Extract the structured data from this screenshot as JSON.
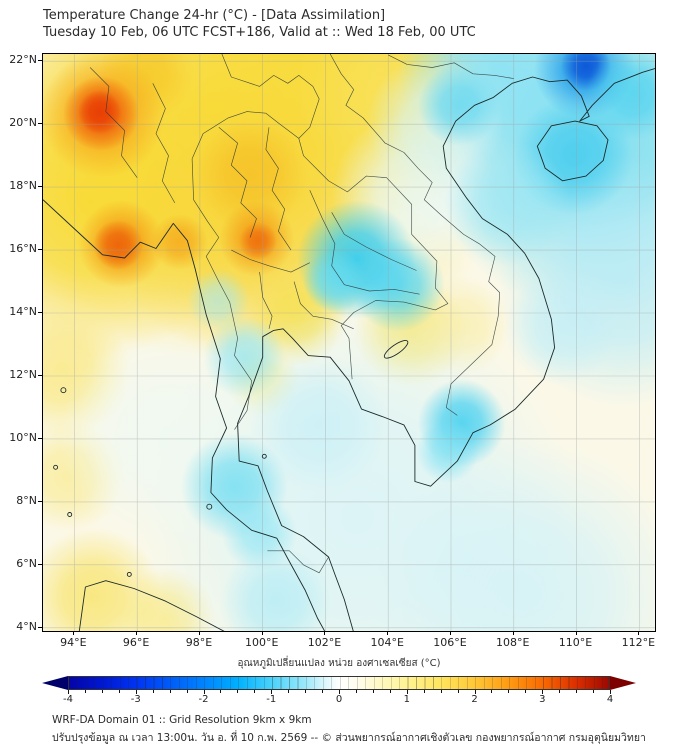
{
  "header": {
    "title": "Temperature Change 24-hr (°C) - [Data Assimilation]",
    "subtitle": "Tuesday 10 Feb, 06 UTC FCST+186, Valid at :: Wed 18 Feb, 00 UTC"
  },
  "map": {
    "lat_labels": [
      "22°N",
      "20°N",
      "18°N",
      "16°N",
      "14°N",
      "12°N",
      "10°N",
      "8°N",
      "6°N",
      "4°N"
    ],
    "lat_values": [
      22,
      20,
      18,
      16,
      14,
      12,
      10,
      8,
      6,
      4
    ],
    "lon_labels": [
      "94°E",
      "96°E",
      "98°E",
      "100°E",
      "102°E",
      "104°E",
      "106°E",
      "108°E",
      "110°E",
      "112°E"
    ],
    "lon_values": [
      94,
      96,
      98,
      100,
      102,
      104,
      106,
      108,
      110,
      112
    ],
    "field_blobs": [
      {
        "lon": 98.5,
        "lat": 20.5,
        "r": 8.0,
        "c": "#f8d92e",
        "a": 0.95
      },
      {
        "lon": 94.5,
        "lat": 17.5,
        "r": 5.0,
        "c": "#f8d92e",
        "a": 0.9
      },
      {
        "lon": 102.5,
        "lat": 21.5,
        "r": 5.0,
        "c": "#f8da38",
        "a": 0.9
      },
      {
        "lon": 99.5,
        "lat": 17.0,
        "r": 4.5,
        "c": "#f7d63a",
        "a": 0.85
      },
      {
        "lon": 104.0,
        "lat": 21.0,
        "r": 3.0,
        "c": "#f9e25c",
        "a": 0.7
      },
      {
        "lon": 93.6,
        "lat": 12.2,
        "r": 2.2,
        "c": "#f9e87e",
        "a": 0.8
      },
      {
        "lon": 93.8,
        "lat": 8.8,
        "r": 1.8,
        "c": "#f9ea8c",
        "a": 0.7
      },
      {
        "lon": 94.6,
        "lat": 5.0,
        "r": 2.2,
        "c": "#f8e468",
        "a": 0.8
      },
      {
        "lon": 96.9,
        "lat": 4.3,
        "r": 1.6,
        "c": "#f8e87c",
        "a": 0.7
      },
      {
        "lon": 101.1,
        "lat": 13.9,
        "r": 1.6,
        "c": "#f6e04e",
        "a": 0.85
      },
      {
        "lon": 100.0,
        "lat": 11.9,
        "r": 1.2,
        "c": "#f8e86e",
        "a": 0.6
      },
      {
        "lon": 104.7,
        "lat": 13.4,
        "r": 1.8,
        "c": "#f7e564",
        "a": 0.75
      },
      {
        "lon": 106.3,
        "lat": 13.6,
        "r": 1.6,
        "c": "#f8eca0",
        "a": 0.65
      },
      {
        "lon": 105.2,
        "lat": 15.8,
        "r": 1.6,
        "c": "#f9f0b4",
        "a": 0.5
      },
      {
        "lon": 110.5,
        "lat": 19.5,
        "r": 5.5,
        "c": "#7adef2",
        "a": 0.95
      },
      {
        "lon": 107.5,
        "lat": 21.8,
        "r": 3.2,
        "c": "#8ae2f4",
        "a": 0.9
      },
      {
        "lon": 111.5,
        "lat": 15.0,
        "r": 4.0,
        "c": "#b6ebf7",
        "a": 0.8
      },
      {
        "lon": 103.0,
        "lat": 7.5,
        "r": 7.0,
        "c": "#d9f4f8",
        "a": 0.9
      },
      {
        "lon": 108.5,
        "lat": 5.0,
        "r": 5.0,
        "c": "#d2f2f8",
        "a": 0.85
      },
      {
        "lon": 97.0,
        "lat": 10.0,
        "r": 3.5,
        "c": "#eef9f3",
        "a": 0.8
      },
      {
        "lon": 104.8,
        "lat": 17.8,
        "r": 2.6,
        "c": "#e8f8f6",
        "a": 0.8
      },
      {
        "lon": 105.5,
        "lat": 20.0,
        "r": 2.2,
        "c": "#d8f4f6",
        "a": 0.8
      },
      {
        "lon": 110.25,
        "lat": 21.75,
        "r": 1.6,
        "c": "#28a0ea",
        "a": 0.95
      },
      {
        "lon": 110.3,
        "lat": 21.85,
        "r": 0.8,
        "c": "#0c55d8",
        "a": 0.95
      },
      {
        "lon": 109.9,
        "lat": 19.0,
        "r": 1.9,
        "c": "#46ccee",
        "a": 0.85
      },
      {
        "lon": 106.25,
        "lat": 20.6,
        "r": 1.3,
        "c": "#5ad5f0",
        "a": 0.75
      },
      {
        "lon": 103.0,
        "lat": 15.7,
        "r": 1.9,
        "c": "#38cdf0",
        "a": 0.95
      },
      {
        "lon": 104.3,
        "lat": 14.9,
        "r": 1.5,
        "c": "#4ed4f0",
        "a": 0.85
      },
      {
        "lon": 102.3,
        "lat": 15.0,
        "r": 1.0,
        "c": "#66dcf2",
        "a": 0.8
      },
      {
        "lon": 99.4,
        "lat": 12.6,
        "r": 1.3,
        "c": "#8ce4f4",
        "a": 0.7
      },
      {
        "lon": 98.6,
        "lat": 14.4,
        "r": 1.0,
        "c": "#a2e9f6",
        "a": 0.6
      },
      {
        "lon": 99.1,
        "lat": 8.5,
        "r": 1.7,
        "c": "#6cdcf2",
        "a": 0.8
      },
      {
        "lon": 99.9,
        "lat": 7.0,
        "r": 1.2,
        "c": "#8ee5f4",
        "a": 0.7
      },
      {
        "lon": 106.35,
        "lat": 10.5,
        "r": 1.4,
        "c": "#40cff0",
        "a": 0.85
      },
      {
        "lon": 105.9,
        "lat": 9.6,
        "r": 1.0,
        "c": "#7ee1f3",
        "a": 0.7
      },
      {
        "lon": 101.8,
        "lat": 10.5,
        "r": 2.2,
        "c": "#c6eff8",
        "a": 0.7
      },
      {
        "lon": 100.4,
        "lat": 4.8,
        "r": 1.8,
        "c": "#aeebf6",
        "a": 0.7
      },
      {
        "lon": 107.8,
        "lat": 17.5,
        "r": 2.0,
        "c": "#9de7f5",
        "a": 0.75
      },
      {
        "lon": 109.5,
        "lat": 13.5,
        "r": 1.8,
        "c": "#c2eef7",
        "a": 0.7
      },
      {
        "lon": 111.8,
        "lat": 21.0,
        "r": 1.5,
        "c": "#50d2ef",
        "a": 0.8
      },
      {
        "lon": 96.3,
        "lat": 21.6,
        "r": 1.5,
        "c": "#f6c626",
        "a": 0.75
      },
      {
        "lon": 99.6,
        "lat": 18.4,
        "r": 1.8,
        "c": "#f6bc22",
        "a": 0.7
      },
      {
        "lon": 94.9,
        "lat": 20.3,
        "r": 2.0,
        "c": "#f6a81e",
        "a": 0.95
      },
      {
        "lon": 94.85,
        "lat": 20.35,
        "r": 1.2,
        "c": "#ee5a0a",
        "a": 0.95
      },
      {
        "lon": 94.8,
        "lat": 20.4,
        "r": 0.7,
        "c": "#e83c04",
        "a": 0.9
      },
      {
        "lon": 95.5,
        "lat": 16.2,
        "r": 1.4,
        "c": "#f49a14",
        "a": 0.9
      },
      {
        "lon": 95.4,
        "lat": 16.15,
        "r": 0.8,
        "c": "#ec5c08",
        "a": 0.85
      },
      {
        "lon": 97.35,
        "lat": 16.25,
        "r": 0.9,
        "c": "#f5a81c",
        "a": 0.8
      },
      {
        "lon": 99.8,
        "lat": 16.35,
        "r": 1.2,
        "c": "#f4a01a",
        "a": 0.9
      },
      {
        "lon": 99.85,
        "lat": 16.3,
        "r": 0.6,
        "c": "#ee6a0c",
        "a": 0.85
      }
    ]
  },
  "colorbar": {
    "label": "อุณหภูมิเปลี่ยนแปลง หน่วย องศาเซลเซียส (°C)",
    "ticks": [
      "-4",
      "-3",
      "-2",
      "-1",
      "0",
      "1",
      "2",
      "3",
      "4"
    ],
    "tick_values": [
      -4,
      -3,
      -2,
      -1,
      0,
      1,
      2,
      3,
      4
    ],
    "minor_step": 0.25,
    "range": [
      -4,
      4
    ],
    "left_arrow_color": "#00006a",
    "right_arrow_color": "#7c0000",
    "stops": [
      {
        "p": 0,
        "c": "#0404a8"
      },
      {
        "p": 6.25,
        "c": "#0018d2"
      },
      {
        "p": 12.5,
        "c": "#0034f2"
      },
      {
        "p": 18.75,
        "c": "#005cf8"
      },
      {
        "p": 25,
        "c": "#0084ff"
      },
      {
        "p": 31.25,
        "c": "#00b0ff"
      },
      {
        "p": 37.5,
        "c": "#4ad2fa"
      },
      {
        "p": 43.75,
        "c": "#9ce9fa"
      },
      {
        "p": 47,
        "c": "#d6f6fc"
      },
      {
        "p": 50,
        "c": "#ffffff"
      },
      {
        "p": 53,
        "c": "#fffdf0"
      },
      {
        "p": 56.25,
        "c": "#fffad0"
      },
      {
        "p": 62.5,
        "c": "#fff394"
      },
      {
        "p": 68.75,
        "c": "#ffe55e"
      },
      {
        "p": 75,
        "c": "#ffc838"
      },
      {
        "p": 81.25,
        "c": "#ff9c14"
      },
      {
        "p": 87.5,
        "c": "#f96c02"
      },
      {
        "p": 93.75,
        "c": "#dc3000"
      },
      {
        "p": 100,
        "c": "#9e0800"
      }
    ]
  },
  "footer": {
    "line1": "WRF-DA Domain 01 :: Grid Resolution 9km x 9km",
    "line2": "ปรับปรุงข้อมูล ณ เวลา 13:00น. วัน อ. ที่ 10 ก.พ. 2569 -- © ส่วนพยากรณ์อากาศเชิงตัวเลข กองพยากรณ์อากาศ กรมอุตุนิยมวิทยา"
  }
}
